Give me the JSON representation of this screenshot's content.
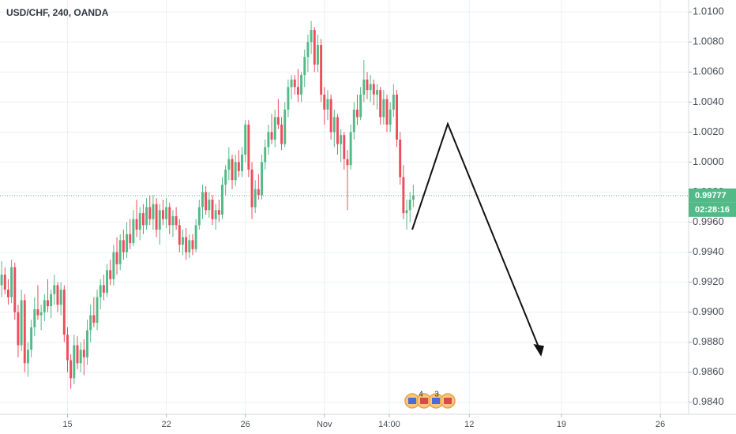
{
  "chart_data": {
    "type": "candlestick",
    "title": "USD/CHF, 240, OANDA",
    "ohlc": [
      [
        0.9918,
        0.9934,
        0.991,
        0.9925
      ],
      [
        0.9925,
        0.993,
        0.9912,
        0.9915
      ],
      [
        0.9915,
        0.9922,
        0.9905,
        0.991
      ],
      [
        0.991,
        0.9935,
        0.9906,
        0.993
      ],
      [
        0.993,
        0.9933,
        0.9895,
        0.99
      ],
      [
        0.99,
        0.9905,
        0.987,
        0.9878
      ],
      [
        0.9878,
        0.9915,
        0.9874,
        0.9908
      ],
      [
        0.9908,
        0.9912,
        0.986,
        0.9866
      ],
      [
        0.9866,
        0.988,
        0.9857,
        0.9875
      ],
      [
        0.9875,
        0.9895,
        0.987,
        0.989
      ],
      [
        0.989,
        0.991,
        0.9884,
        0.9902
      ],
      [
        0.9902,
        0.9918,
        0.9895,
        0.9898
      ],
      [
        0.9898,
        0.9905,
        0.9888,
        0.99
      ],
      [
        0.99,
        0.9912,
        0.9894,
        0.9908
      ],
      [
        0.9908,
        0.9922,
        0.99,
        0.9904
      ],
      [
        0.9904,
        0.9915,
        0.9896,
        0.9912
      ],
      [
        0.9912,
        0.9925,
        0.9905,
        0.9918
      ],
      [
        0.9918,
        0.992,
        0.99,
        0.9905
      ],
      [
        0.9905,
        0.992,
        0.9898,
        0.9915
      ],
      [
        0.9915,
        0.9918,
        0.988,
        0.9885
      ],
      [
        0.9885,
        0.989,
        0.986,
        0.9868
      ],
      [
        0.9868,
        0.9872,
        0.9849,
        0.9856
      ],
      [
        0.9856,
        0.9885,
        0.9852,
        0.9878
      ],
      [
        0.9878,
        0.9884,
        0.9862,
        0.9866
      ],
      [
        0.9866,
        0.988,
        0.986,
        0.9875
      ],
      [
        0.9875,
        0.9882,
        0.9858,
        0.987
      ],
      [
        0.987,
        0.9895,
        0.9865,
        0.9888
      ],
      [
        0.9888,
        0.9905,
        0.988,
        0.9898
      ],
      [
        0.9898,
        0.991,
        0.989,
        0.9893
      ],
      [
        0.9893,
        0.9915,
        0.9888,
        0.991
      ],
      [
        0.991,
        0.9922,
        0.9902,
        0.9918
      ],
      [
        0.9918,
        0.9925,
        0.9908,
        0.9913
      ],
      [
        0.9913,
        0.9932,
        0.991,
        0.9928
      ],
      [
        0.9928,
        0.9935,
        0.9918,
        0.9922
      ],
      [
        0.9922,
        0.9945,
        0.9918,
        0.994
      ],
      [
        0.994,
        0.995,
        0.9925,
        0.9932
      ],
      [
        0.9932,
        0.9952,
        0.9928,
        0.9948
      ],
      [
        0.9948,
        0.9955,
        0.9935,
        0.994
      ],
      [
        0.994,
        0.996,
        0.9936,
        0.9952
      ],
      [
        0.9952,
        0.9962,
        0.9942,
        0.9946
      ],
      [
        0.9946,
        0.9968,
        0.9944,
        0.9962
      ],
      [
        0.9962,
        0.9975,
        0.995,
        0.9955
      ],
      [
        0.9955,
        0.997,
        0.9948,
        0.9966
      ],
      [
        0.9966,
        0.9972,
        0.9952,
        0.9958
      ],
      [
        0.9958,
        0.9976,
        0.9955,
        0.997
      ],
      [
        0.997,
        0.9978,
        0.9958,
        0.9962
      ],
      [
        0.9962,
        0.9978,
        0.9955,
        0.9972
      ],
      [
        0.9972,
        0.9976,
        0.995,
        0.9955
      ],
      [
        0.9955,
        0.9972,
        0.9945,
        0.9968
      ],
      [
        0.9968,
        0.9975,
        0.9958,
        0.9962
      ],
      [
        0.9962,
        0.9976,
        0.9956,
        0.997
      ],
      [
        0.997,
        0.9973,
        0.9952,
        0.9958
      ],
      [
        0.9958,
        0.9968,
        0.995,
        0.9964
      ],
      [
        0.9964,
        0.997,
        0.9955,
        0.9958
      ],
      [
        0.9958,
        0.9962,
        0.994,
        0.9945
      ],
      [
        0.9945,
        0.9955,
        0.9938,
        0.995
      ],
      [
        0.995,
        0.9956,
        0.9935,
        0.994
      ],
      [
        0.994,
        0.9952,
        0.9936,
        0.9948
      ],
      [
        0.9948,
        0.9952,
        0.9938,
        0.9942
      ],
      [
        0.9942,
        0.9962,
        0.994,
        0.9958
      ],
      [
        0.9958,
        0.9975,
        0.9955,
        0.997
      ],
      [
        0.997,
        0.9985,
        0.9962,
        0.998
      ],
      [
        0.998,
        0.9984,
        0.9965,
        0.9968
      ],
      [
        0.9968,
        0.998,
        0.9963,
        0.9975
      ],
      [
        0.9975,
        0.9978,
        0.9958,
        0.9962
      ],
      [
        0.9962,
        0.9972,
        0.9955,
        0.9968
      ],
      [
        0.9968,
        0.9975,
        0.996,
        0.9965
      ],
      [
        0.9965,
        0.999,
        0.9962,
        0.9985
      ],
      [
        0.9985,
        0.9998,
        0.9978,
        0.9995
      ],
      [
        0.9995,
        1.001,
        0.9988,
        1.0002
      ],
      [
        1.0002,
        1.0005,
        0.9982,
        0.9988
      ],
      [
        0.9988,
        1.0005,
        0.9984,
        1.0
      ],
      [
        1.0,
        1.0008,
        0.999,
        0.9994
      ],
      [
        0.9994,
        1.001,
        0.999,
        1.0005
      ],
      [
        1.0005,
        1.0028,
        1.0,
        1.0025
      ],
      [
        1.0025,
        1.0028,
        0.999,
        0.9995
      ],
      [
        0.9995,
        1.0,
        0.9962,
        0.997
      ],
      [
        0.997,
        0.9988,
        0.9966,
        0.9982
      ],
      [
        0.9982,
        0.9992,
        0.9975,
        0.9978
      ],
      [
        0.9978,
        1.0005,
        0.9975,
        1.0
      ],
      [
        1.0,
        1.0015,
        0.9995,
        1.001
      ],
      [
        1.001,
        1.0025,
        1.0005,
        1.002
      ],
      [
        1.002,
        1.0032,
        1.0012,
        1.0015
      ],
      [
        1.0015,
        1.0035,
        1.001,
        1.003
      ],
      [
        1.003,
        1.0042,
        1.0022,
        1.0025
      ],
      [
        1.0025,
        1.003,
        1.0008,
        1.0012
      ],
      [
        1.0012,
        1.004,
        1.001,
        1.0035
      ],
      [
        1.0035,
        1.0055,
        1.003,
        1.005
      ],
      [
        1.005,
        1.0058,
        1.0042,
        1.0055
      ],
      [
        1.0055,
        1.0058,
        1.0045,
        1.005
      ],
      [
        1.005,
        1.0062,
        1.004,
        1.0045
      ],
      [
        1.0045,
        1.006,
        1.004,
        1.0058
      ],
      [
        1.0058,
        1.0075,
        1.005,
        1.007
      ],
      [
        1.007,
        1.0085,
        1.006,
        1.008
      ],
      [
        1.008,
        1.0094,
        1.0072,
        1.0088
      ],
      [
        1.0088,
        1.009,
        1.006,
        1.0065
      ],
      [
        1.0065,
        1.0085,
        1.006,
        1.0078
      ],
      [
        1.0078,
        1.0082,
        1.004,
        1.0045
      ],
      [
        1.0045,
        1.005,
        1.0025,
        1.0035
      ],
      [
        1.0035,
        1.0048,
        1.0028,
        1.0042
      ],
      [
        1.0042,
        1.0045,
        1.0015,
        1.002
      ],
      [
        1.002,
        1.0035,
        1.001,
        1.003
      ],
      [
        1.003,
        1.0032,
        1.0005,
        1.0012
      ],
      [
        1.0012,
        1.0022,
        1.0,
        1.0018
      ],
      [
        1.0018,
        1.002,
        0.9995,
        1.0002
      ],
      [
        1.0002,
        1.0008,
        0.9968,
        0.9998
      ],
      [
        0.9998,
        1.0025,
        0.9995,
        1.002
      ],
      [
        1.002,
        1.004,
        1.0015,
        1.0035
      ],
      [
        1.0035,
        1.0045,
        1.0025,
        1.003
      ],
      [
        1.003,
        1.005,
        1.0028,
        1.0045
      ],
      [
        1.0045,
        1.0068,
        1.004,
        1.0055
      ],
      [
        1.0055,
        1.006,
        1.0042,
        1.0048
      ],
      [
        1.0048,
        1.0058,
        1.004,
        1.0052
      ],
      [
        1.0052,
        1.0055,
        1.0038,
        1.0045
      ],
      [
        1.0045,
        1.0052,
        1.0035,
        1.0048
      ],
      [
        1.0048,
        1.005,
        1.0025,
        1.003
      ],
      [
        1.003,
        1.0048,
        1.0025,
        1.0042
      ],
      [
        1.0042,
        1.0045,
        1.002,
        1.0025
      ],
      [
        1.0025,
        1.004,
        1.002,
        1.0035
      ],
      [
        1.0035,
        1.0052,
        1.003,
        1.0045
      ],
      [
        1.0045,
        1.0048,
        1.001,
        1.0015
      ],
      [
        1.0015,
        1.002,
        0.9985,
        0.999
      ],
      [
        0.999,
        0.9998,
        0.9962,
        0.9966
      ],
      [
        0.9966,
        0.9975,
        0.9955,
        0.9968
      ],
      [
        0.9968,
        0.998,
        0.996,
        0.9975
      ],
      [
        0.9975,
        0.9985,
        0.997,
        0.99777
      ]
    ],
    "xlim": [
      -0.5,
      208.6
    ],
    "xticks": [
      {
        "value": 20,
        "label": "15"
      },
      {
        "value": 50,
        "label": "22"
      },
      {
        "value": 74,
        "label": "26"
      },
      {
        "value": 98,
        "label": "Nov"
      },
      {
        "value": 117.7,
        "label": "14:00"
      },
      {
        "value": 142,
        "label": "12"
      },
      {
        "value": 170,
        "label": "19"
      },
      {
        "value": 200,
        "label": "26"
      }
    ],
    "ylim": [
      0.9832,
      1.0108
    ],
    "yticks": [
      {
        "value": 1.01,
        "label": "1.0100"
      },
      {
        "value": 1.008,
        "label": "1.0080"
      },
      {
        "value": 1.006,
        "label": "1.0060"
      },
      {
        "value": 1.004,
        "label": "1.0040"
      },
      {
        "value": 1.002,
        "label": "1.0020"
      },
      {
        "value": 1.0,
        "label": "1.0000"
      },
      {
        "value": 0.998,
        "label": "0.9980"
      },
      {
        "value": 0.996,
        "label": "0.9960"
      },
      {
        "value": 0.994,
        "label": "0.9940"
      },
      {
        "value": 0.992,
        "label": "0.9920"
      },
      {
        "value": 0.99,
        "label": "0.9900"
      },
      {
        "value": 0.988,
        "label": "0.9880"
      },
      {
        "value": 0.986,
        "label": "0.9860"
      },
      {
        "value": 0.984,
        "label": "0.9840"
      }
    ],
    "grid": true,
    "colors": {
      "up": "#53b987",
      "down": "#eb4d5c"
    },
    "last_price": 0.99777,
    "countdown": "02:28:16",
    "events": [
      "4",
      "3"
    ]
  }
}
